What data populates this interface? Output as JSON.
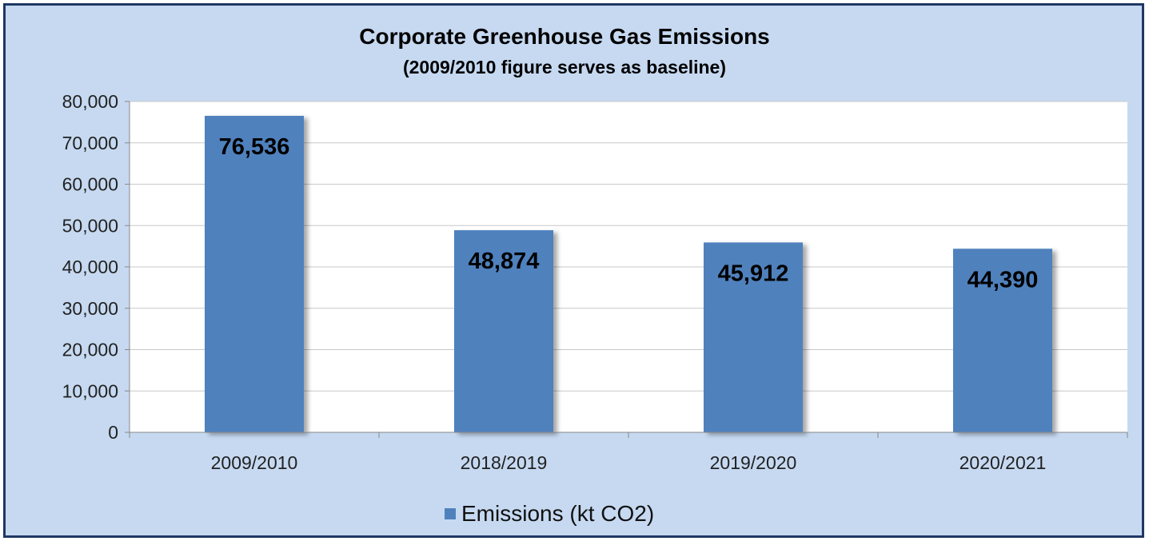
{
  "chart_data": {
    "type": "bar",
    "title": "Corporate Greenhouse  Gas Emissions",
    "subtitle": "(2009/2010  figure serves as baseline)",
    "categories": [
      "2009/2010",
      "2018/2019",
      "2019/2020",
      "2020/2021"
    ],
    "series": [
      {
        "name": "Emissions (kt CO2)",
        "values": [
          76536,
          48874,
          45912,
          44390
        ],
        "value_labels": [
          "76,536",
          "48,874",
          "45,912",
          "44,390"
        ],
        "color": "#4f81bd"
      }
    ],
    "ylim": [
      0,
      80000
    ],
    "yticks": [
      "0",
      "10,000",
      "20,000",
      "30,000",
      "40,000",
      "50,000",
      "60,000",
      "70,000",
      "80,000"
    ],
    "grid": true,
    "legend_position": "bottom",
    "colors": {
      "background": "#c6d9f1",
      "border": "#1f3864",
      "plot": "#ffffff",
      "bar": "#4f81bd"
    }
  }
}
